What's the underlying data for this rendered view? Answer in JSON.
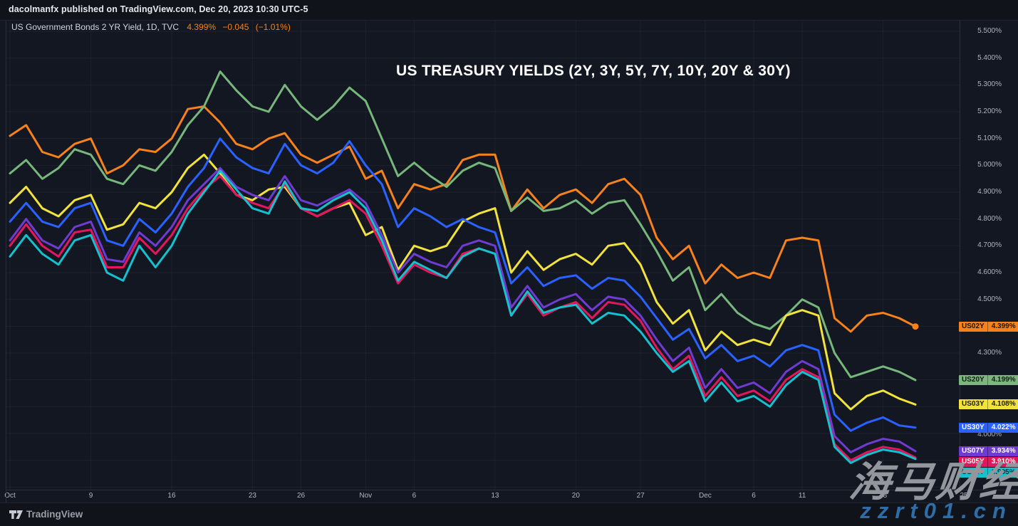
{
  "topbar": {
    "publish_line": "dacolmanfx published on TradingView.com, Dec 20, 2023 10:30 UTC-5"
  },
  "legend": {
    "symbol": "US Government Bonds 2 YR Yield, 1D, TVC",
    "last": "4.399%",
    "change": "−0.045",
    "change_pct": "(−1.01%)",
    "value_color": "#f7821b"
  },
  "title": "US TREASURY YIELDS (2Y, 3Y, 5Y, 7Y, 10Y, 20Y & 30Y)",
  "watermark": {
    "cjk": "海马财经",
    "url": "zzrt01.cn"
  },
  "footer": {
    "brand": "TradingView"
  },
  "price_axis": {
    "ticks": [
      {
        "label": "5.500%",
        "value": 5.5
      },
      {
        "label": "5.400%",
        "value": 5.4
      },
      {
        "label": "5.300%",
        "value": 5.3
      },
      {
        "label": "5.200%",
        "value": 5.2
      },
      {
        "label": "5.100%",
        "value": 5.1
      },
      {
        "label": "5.000%",
        "value": 5.0
      },
      {
        "label": "4.900%",
        "value": 4.9
      },
      {
        "label": "4.800%",
        "value": 4.8
      },
      {
        "label": "4.700%",
        "value": 4.7
      },
      {
        "label": "4.600%",
        "value": 4.6
      },
      {
        "label": "4.500%",
        "value": 4.5
      },
      {
        "label": "4.300%",
        "value": 4.3
      },
      {
        "label": "4.000%",
        "value": 3.995
      }
    ]
  },
  "time_axis": {
    "labels": [
      {
        "text": "Oct",
        "day": 0
      },
      {
        "text": "9",
        "day": 5
      },
      {
        "text": "16",
        "day": 10
      },
      {
        "text": "23",
        "day": 15
      },
      {
        "text": "26",
        "day": 18
      },
      {
        "text": "Nov",
        "day": 22
      },
      {
        "text": "6",
        "day": 25
      },
      {
        "text": "13",
        "day": 30
      },
      {
        "text": "20",
        "day": 35
      },
      {
        "text": "27",
        "day": 39
      },
      {
        "text": "Dec",
        "day": 43
      },
      {
        "text": "6",
        "day": 46
      },
      {
        "text": "11",
        "day": 49
      },
      {
        "text": "18",
        "day": 54
      },
      {
        "text": "25",
        "day": 59
      }
    ]
  },
  "price_labels": [
    {
      "ticker": "US02Y",
      "label": "4.399%",
      "value": 4.399,
      "color": "#f7821b",
      "text_color": "#1e1504"
    },
    {
      "ticker": "US20Y",
      "label": "4.199%",
      "value": 4.199,
      "color": "#7db77f",
      "text_color": "#101c10"
    },
    {
      "ticker": "US03Y",
      "label": "4.108%",
      "value": 4.108,
      "color": "#f2e33c",
      "text_color": "#1e1c06"
    },
    {
      "ticker": "US30Y",
      "label": "4.022%",
      "value": 4.022,
      "color": "#2962ff",
      "text_color": "#ffffff"
    },
    {
      "ticker": "US07Y",
      "label": "3.934%",
      "value": 3.934,
      "color": "#6f3bd3",
      "text_color": "#ffffff"
    },
    {
      "ticker": "US05Y",
      "label": "3.910%",
      "value": 3.91,
      "color": "#e4175e",
      "text_color": "#ffffff"
    },
    {
      "ticker": "US10Y",
      "label": "3.905%",
      "value": 3.905,
      "color": "#15c1ce",
      "text_color": "#07282b"
    }
  ],
  "chart_data": {
    "type": "line",
    "title": "US TREASURY YIELDS (2Y, 3Y, 5Y, 7Y, 10Y, 20Y & 30Y)",
    "ylabel": "Yield (%)",
    "ylim": [
      3.79,
      5.56
    ],
    "grid": true,
    "legend_position": "right-price-scale",
    "x_dates": [
      "Oct 2",
      "Oct 3",
      "Oct 4",
      "Oct 5",
      "Oct 6",
      "Oct 9",
      "Oct 10",
      "Oct 11",
      "Oct 12",
      "Oct 13",
      "Oct 16",
      "Oct 17",
      "Oct 18",
      "Oct 19",
      "Oct 20",
      "Oct 23",
      "Oct 24",
      "Oct 25",
      "Oct 26",
      "Oct 27",
      "Oct 30",
      "Oct 31",
      "Nov 1",
      "Nov 2",
      "Nov 3",
      "Nov 6",
      "Nov 7",
      "Nov 8",
      "Nov 9",
      "Nov 10",
      "Nov 13",
      "Nov 14",
      "Nov 15",
      "Nov 16",
      "Nov 17",
      "Nov 20",
      "Nov 21",
      "Nov 22",
      "Nov 24",
      "Nov 27",
      "Nov 28",
      "Nov 29",
      "Nov 30",
      "Dec 1",
      "Dec 4",
      "Dec 5",
      "Dec 6",
      "Dec 7",
      "Dec 8",
      "Dec 11",
      "Dec 12",
      "Dec 13",
      "Dec 14",
      "Dec 15",
      "Dec 18",
      "Dec 19",
      "Dec 20"
    ],
    "series": [
      {
        "name": "US02Y",
        "color": "#f7821b",
        "end_marker": true,
        "values": [
          5.11,
          5.15,
          5.05,
          5.03,
          5.08,
          5.1,
          4.97,
          5.0,
          5.06,
          5.05,
          5.1,
          5.21,
          5.22,
          5.16,
          5.08,
          5.06,
          5.1,
          5.12,
          5.04,
          5.01,
          5.04,
          5.07,
          4.95,
          4.98,
          4.84,
          4.93,
          4.91,
          4.93,
          5.02,
          5.04,
          5.04,
          4.83,
          4.91,
          4.84,
          4.89,
          4.91,
          4.86,
          4.93,
          4.95,
          4.89,
          4.73,
          4.65,
          4.7,
          4.56,
          4.63,
          4.58,
          4.6,
          4.58,
          4.72,
          4.73,
          4.72,
          4.43,
          4.38,
          4.44,
          4.45,
          4.43,
          4.399
        ]
      },
      {
        "name": "US20Y",
        "color": "#77b77b",
        "end_marker": false,
        "values": [
          4.97,
          5.02,
          4.95,
          4.99,
          5.06,
          5.04,
          4.95,
          4.93,
          5.0,
          4.98,
          5.05,
          5.15,
          5.22,
          5.35,
          5.28,
          5.22,
          5.2,
          5.3,
          5.22,
          5.17,
          5.22,
          5.29,
          5.24,
          5.1,
          4.96,
          5.01,
          4.96,
          4.92,
          4.98,
          5.01,
          4.99,
          4.83,
          4.88,
          4.83,
          4.84,
          4.87,
          4.82,
          4.86,
          4.87,
          4.78,
          4.68,
          4.57,
          4.62,
          4.46,
          4.52,
          4.45,
          4.41,
          4.39,
          4.44,
          4.5,
          4.47,
          4.3,
          4.21,
          4.23,
          4.25,
          4.23,
          4.199
        ]
      },
      {
        "name": "US03Y",
        "color": "#f2e33c",
        "end_marker": false,
        "values": [
          4.86,
          4.92,
          4.84,
          4.81,
          4.87,
          4.89,
          4.76,
          4.78,
          4.86,
          4.84,
          4.9,
          4.99,
          5.04,
          4.97,
          4.89,
          4.87,
          4.91,
          4.92,
          4.84,
          4.81,
          4.84,
          4.86,
          4.74,
          4.77,
          4.61,
          4.7,
          4.68,
          4.7,
          4.79,
          4.82,
          4.84,
          4.6,
          4.68,
          4.61,
          4.65,
          4.67,
          4.63,
          4.7,
          4.71,
          4.63,
          4.49,
          4.41,
          4.46,
          4.31,
          4.38,
          4.33,
          4.35,
          4.33,
          4.44,
          4.46,
          4.44,
          4.15,
          4.09,
          4.14,
          4.16,
          4.13,
          4.108
        ]
      },
      {
        "name": "US30Y",
        "color": "#2962ff",
        "end_marker": false,
        "values": [
          4.79,
          4.86,
          4.79,
          4.77,
          4.84,
          4.86,
          4.72,
          4.7,
          4.8,
          4.75,
          4.82,
          4.92,
          4.99,
          5.1,
          5.03,
          4.99,
          4.97,
          5.08,
          5.0,
          4.97,
          5.01,
          5.09,
          5.0,
          4.93,
          4.77,
          4.84,
          4.81,
          4.77,
          4.8,
          4.77,
          4.75,
          4.56,
          4.62,
          4.55,
          4.58,
          4.59,
          4.54,
          4.58,
          4.57,
          4.51,
          4.43,
          4.35,
          4.39,
          4.28,
          4.33,
          4.27,
          4.29,
          4.25,
          4.31,
          4.33,
          4.31,
          4.07,
          4.01,
          4.04,
          4.06,
          4.03,
          4.022
        ]
      },
      {
        "name": "US07Y",
        "color": "#6f3bd3",
        "end_marker": false,
        "values": [
          4.72,
          4.8,
          4.72,
          4.69,
          4.77,
          4.79,
          4.65,
          4.64,
          4.75,
          4.7,
          4.77,
          4.87,
          4.93,
          4.99,
          4.92,
          4.89,
          4.87,
          4.96,
          4.87,
          4.85,
          4.88,
          4.91,
          4.86,
          4.74,
          4.6,
          4.67,
          4.64,
          4.62,
          4.7,
          4.72,
          4.7,
          4.47,
          4.55,
          4.47,
          4.5,
          4.52,
          4.46,
          4.51,
          4.5,
          4.44,
          4.35,
          4.27,
          4.32,
          4.17,
          4.24,
          4.17,
          4.19,
          4.15,
          4.23,
          4.27,
          4.24,
          3.99,
          3.93,
          3.96,
          3.98,
          3.97,
          3.934
        ]
      },
      {
        "name": "US05Y",
        "color": "#e4175e",
        "end_marker": false,
        "values": [
          4.7,
          4.78,
          4.7,
          4.66,
          4.75,
          4.76,
          4.62,
          4.62,
          4.73,
          4.67,
          4.74,
          4.84,
          4.91,
          4.96,
          4.89,
          4.86,
          4.84,
          4.93,
          4.84,
          4.81,
          4.84,
          4.87,
          4.82,
          4.7,
          4.56,
          4.63,
          4.6,
          4.58,
          4.67,
          4.69,
          4.67,
          4.44,
          4.52,
          4.44,
          4.47,
          4.49,
          4.43,
          4.49,
          4.48,
          4.42,
          4.32,
          4.24,
          4.29,
          4.14,
          4.21,
          4.14,
          4.16,
          4.12,
          4.2,
          4.24,
          4.21,
          3.96,
          3.9,
          3.93,
          3.95,
          3.94,
          3.91
        ]
      },
      {
        "name": "US10Y",
        "color": "#15c1ce",
        "end_marker": false,
        "values": [
          4.66,
          4.74,
          4.67,
          4.63,
          4.72,
          4.74,
          4.6,
          4.57,
          4.7,
          4.62,
          4.7,
          4.82,
          4.9,
          4.98,
          4.91,
          4.84,
          4.82,
          4.94,
          4.84,
          4.83,
          4.87,
          4.9,
          4.84,
          4.72,
          4.57,
          4.64,
          4.61,
          4.58,
          4.66,
          4.69,
          4.67,
          4.44,
          4.53,
          4.45,
          4.47,
          4.48,
          4.41,
          4.45,
          4.44,
          4.38,
          4.3,
          4.23,
          4.27,
          4.12,
          4.19,
          4.12,
          4.14,
          4.1,
          4.18,
          4.23,
          4.2,
          3.95,
          3.89,
          3.92,
          3.94,
          3.93,
          3.905
        ]
      }
    ]
  }
}
